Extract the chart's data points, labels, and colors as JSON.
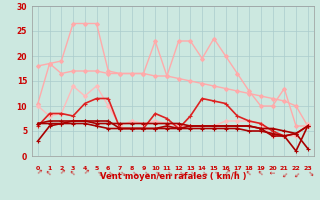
{
  "x": [
    0,
    1,
    2,
    3,
    4,
    5,
    6,
    7,
    8,
    9,
    10,
    11,
    12,
    13,
    14,
    15,
    16,
    17,
    18,
    19,
    20,
    21,
    22,
    23
  ],
  "background_color": "#cce8e0",
  "grid_color": "#aacccc",
  "xlabel": "Vent moyen/en rafales ( km/h )",
  "xlabel_color": "#cc0000",
  "tick_color": "#cc0000",
  "series": [
    {
      "y": [
        10.5,
        18.5,
        19,
        26.5,
        26.5,
        26.5,
        17,
        16.5,
        16.5,
        16.5,
        23,
        16,
        23,
        23,
        19.5,
        23.5,
        20,
        16.5,
        13,
        10,
        10,
        13.5,
        6,
        6
      ],
      "color": "#ffaaaa",
      "linewidth": 1.0,
      "marker": "D",
      "markersize": 2.0,
      "zorder": 2
    },
    {
      "y": [
        18,
        18.5,
        16.5,
        17,
        17,
        17,
        16.5,
        16.5,
        16.5,
        16.5,
        16,
        16,
        15.5,
        15,
        14.5,
        14,
        13.5,
        13,
        12.5,
        12,
        11.5,
        11,
        10,
        6
      ],
      "color": "#ffaaaa",
      "linewidth": 1.0,
      "marker": "D",
      "markersize": 2.0,
      "zorder": 2
    },
    {
      "y": [
        10,
        8,
        8.5,
        14,
        12,
        14,
        10,
        6,
        7,
        6.5,
        7,
        6.5,
        6,
        6,
        6,
        6,
        7,
        7,
        7,
        6.5,
        4,
        4,
        4,
        6.5
      ],
      "color": "#ffbbbb",
      "linewidth": 1.0,
      "marker": "D",
      "markersize": 2.0,
      "zorder": 2
    },
    {
      "y": [
        6,
        8.5,
        8.5,
        8,
        10.5,
        11.5,
        11.5,
        5.5,
        5.5,
        5.5,
        8.5,
        7.5,
        5.5,
        8,
        11.5,
        11,
        10.5,
        8,
        7,
        6.5,
        5,
        4,
        4.5,
        6
      ],
      "color": "#dd2222",
      "linewidth": 1.2,
      "marker": "+",
      "markersize": 3.5,
      "zorder": 3
    },
    {
      "y": [
        6.5,
        7,
        7,
        7,
        7,
        6.5,
        6.5,
        6.5,
        6.5,
        6.5,
        6.5,
        6.5,
        6.5,
        6,
        6,
        6,
        6,
        6,
        6,
        5.5,
        5.5,
        5,
        4.5,
        1.5
      ],
      "color": "#aa0000",
      "linewidth": 1.2,
      "marker": "+",
      "markersize": 3.5,
      "zorder": 3
    },
    {
      "y": [
        3,
        6,
        6.5,
        7,
        7,
        7,
        7,
        5.5,
        5.5,
        5.5,
        5.5,
        6,
        5.5,
        6,
        6,
        6,
        6,
        6,
        6,
        5.5,
        4,
        4,
        4.5,
        6
      ],
      "color": "#aa0000",
      "linewidth": 1.2,
      "marker": "+",
      "markersize": 3.5,
      "zorder": 3
    },
    {
      "y": [
        6.5,
        6.5,
        6.5,
        6.5,
        6.5,
        6,
        5.5,
        5.5,
        5.5,
        5.5,
        5.5,
        5.5,
        5.5,
        5.5,
        5.5,
        5.5,
        5.5,
        5.5,
        5,
        5,
        4.5,
        4,
        1,
        6
      ],
      "color": "#aa0000",
      "linewidth": 1.2,
      "marker": "+",
      "markersize": 3.5,
      "zorder": 3
    }
  ],
  "ylim": [
    0,
    30
  ],
  "yticks": [
    0,
    5,
    10,
    15,
    20,
    25,
    30
  ],
  "arrow_rotations": [
    315,
    45,
    315,
    45,
    315,
    225,
    225,
    225,
    225,
    225,
    225,
    225,
    225,
    225,
    225,
    225,
    315,
    45,
    45,
    45,
    90,
    135,
    135,
    225
  ]
}
